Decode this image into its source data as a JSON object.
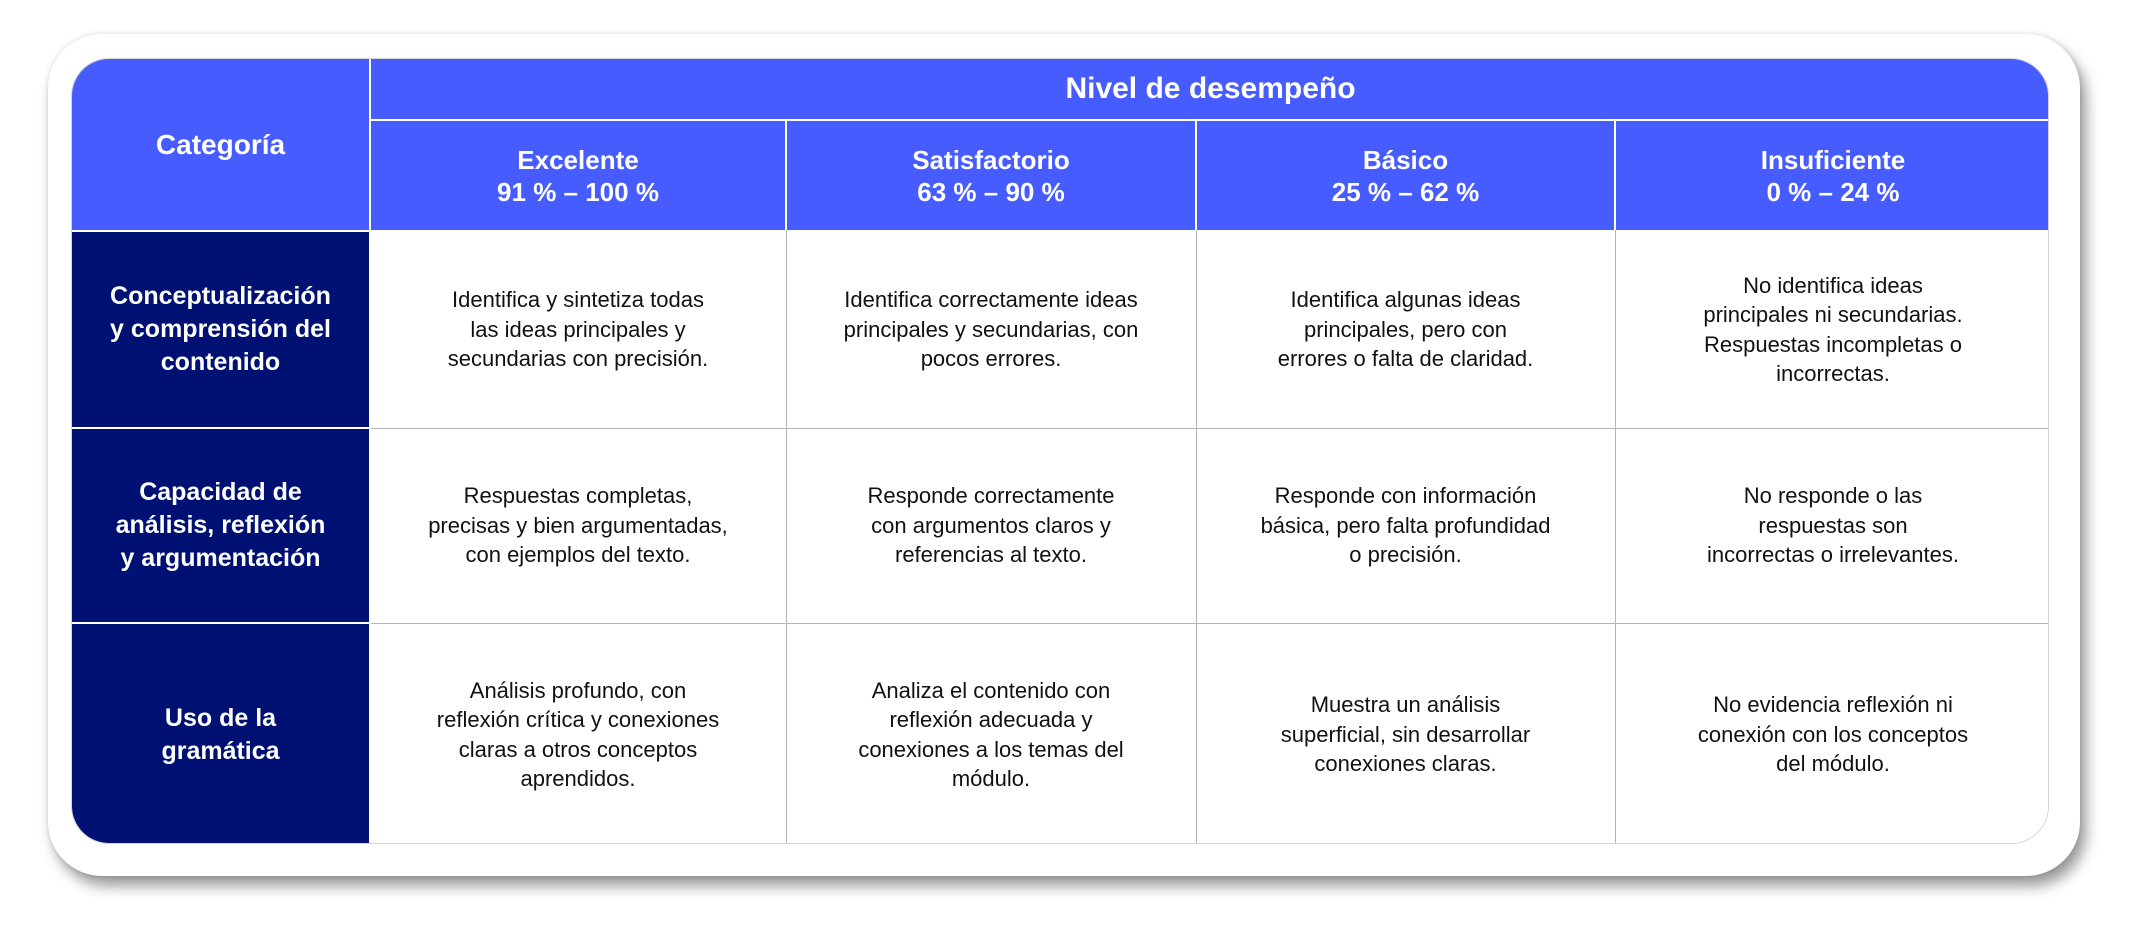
{
  "table": {
    "category_header": "Categoría",
    "group_header": "Nivel de desempeño",
    "levels": [
      {
        "name": "Excelente",
        "range": "91 % – 100 %"
      },
      {
        "name": "Satisfactorio",
        "range": "63 % – 90 %"
      },
      {
        "name": "Básico",
        "range": "25 % – 62 %"
      },
      {
        "name": "Insuficiente",
        "range": "0 % – 24 %"
      }
    ],
    "rows": [
      {
        "category": "Conceptualización\ny comprensión del\ncontenido",
        "cells": [
          "Identifica y sintetiza todas\nlas ideas principales y\nsecundarias con precisión.",
          "Identifica correctamente ideas\nprincipales y secundarias, con\npocos errores.",
          "Identifica algunas ideas\nprincipales, pero con\nerrores o falta de claridad.",
          "No identifica ideas\nprincipales ni secundarias.\nRespuestas incompletas o\nincorrectas."
        ]
      },
      {
        "category": "Capacidad de\nanálisis, reflexión\ny argumentación",
        "cells": [
          "Respuestas completas,\nprecisas y bien argumentadas,\ncon ejemplos del texto.",
          "Responde correctamente\ncon argumentos claros y\nreferencias al texto.",
          "Responde con información\nbásica, pero falta profundidad\no precisión.",
          "No responde o las\nrespuestas son\nincorrectas o irrelevantes."
        ]
      },
      {
        "category": "Uso de la\ngramática",
        "cells": [
          "Análisis profundo, con\nreflexión crítica y conexiones\nclaras a otros conceptos\naprendidos.",
          "Analiza el contenido con\nreflexión adecuada y\nconexiones a los temas del\nmódulo.",
          "Muestra un análisis\nsuperficial, sin desarrollar\nconexiones claras.",
          "No evidencia reflexión ni\nconexión con los conceptos\ndel módulo."
        ]
      }
    ]
  }
}
